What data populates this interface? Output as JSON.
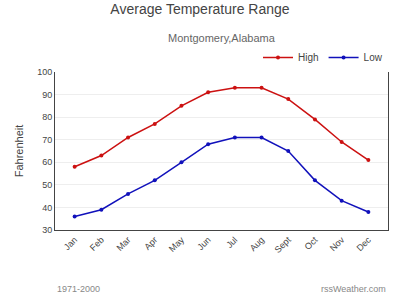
{
  "chart_data": {
    "type": "line",
    "title": "Average Temperature Range",
    "subtitle": "Montgomery,Alabama",
    "ylabel": "Fahrenheit",
    "categories": [
      "Jan",
      "Feb",
      "Mar",
      "Apr",
      "May",
      "Jun",
      "Jul",
      "Aug",
      "Sept",
      "Oct",
      "Nov",
      "Dec"
    ],
    "series": [
      {
        "name": "High",
        "color": "#cc1111",
        "values": [
          58,
          63,
          71,
          77,
          85,
          91,
          93,
          93,
          88,
          79,
          69,
          61
        ]
      },
      {
        "name": "Low",
        "color": "#1111bb",
        "values": [
          36,
          39,
          46,
          52,
          60,
          68,
          71,
          71,
          65,
          52,
          43,
          38
        ]
      }
    ],
    "ylim": [
      30,
      100
    ],
    "yticks": [
      30,
      40,
      50,
      60,
      70,
      80,
      90,
      100
    ],
    "grid": true,
    "legend": "upper right",
    "marker": "point",
    "annotations": [
      "1971-2000",
      "rssWeather.com"
    ]
  }
}
